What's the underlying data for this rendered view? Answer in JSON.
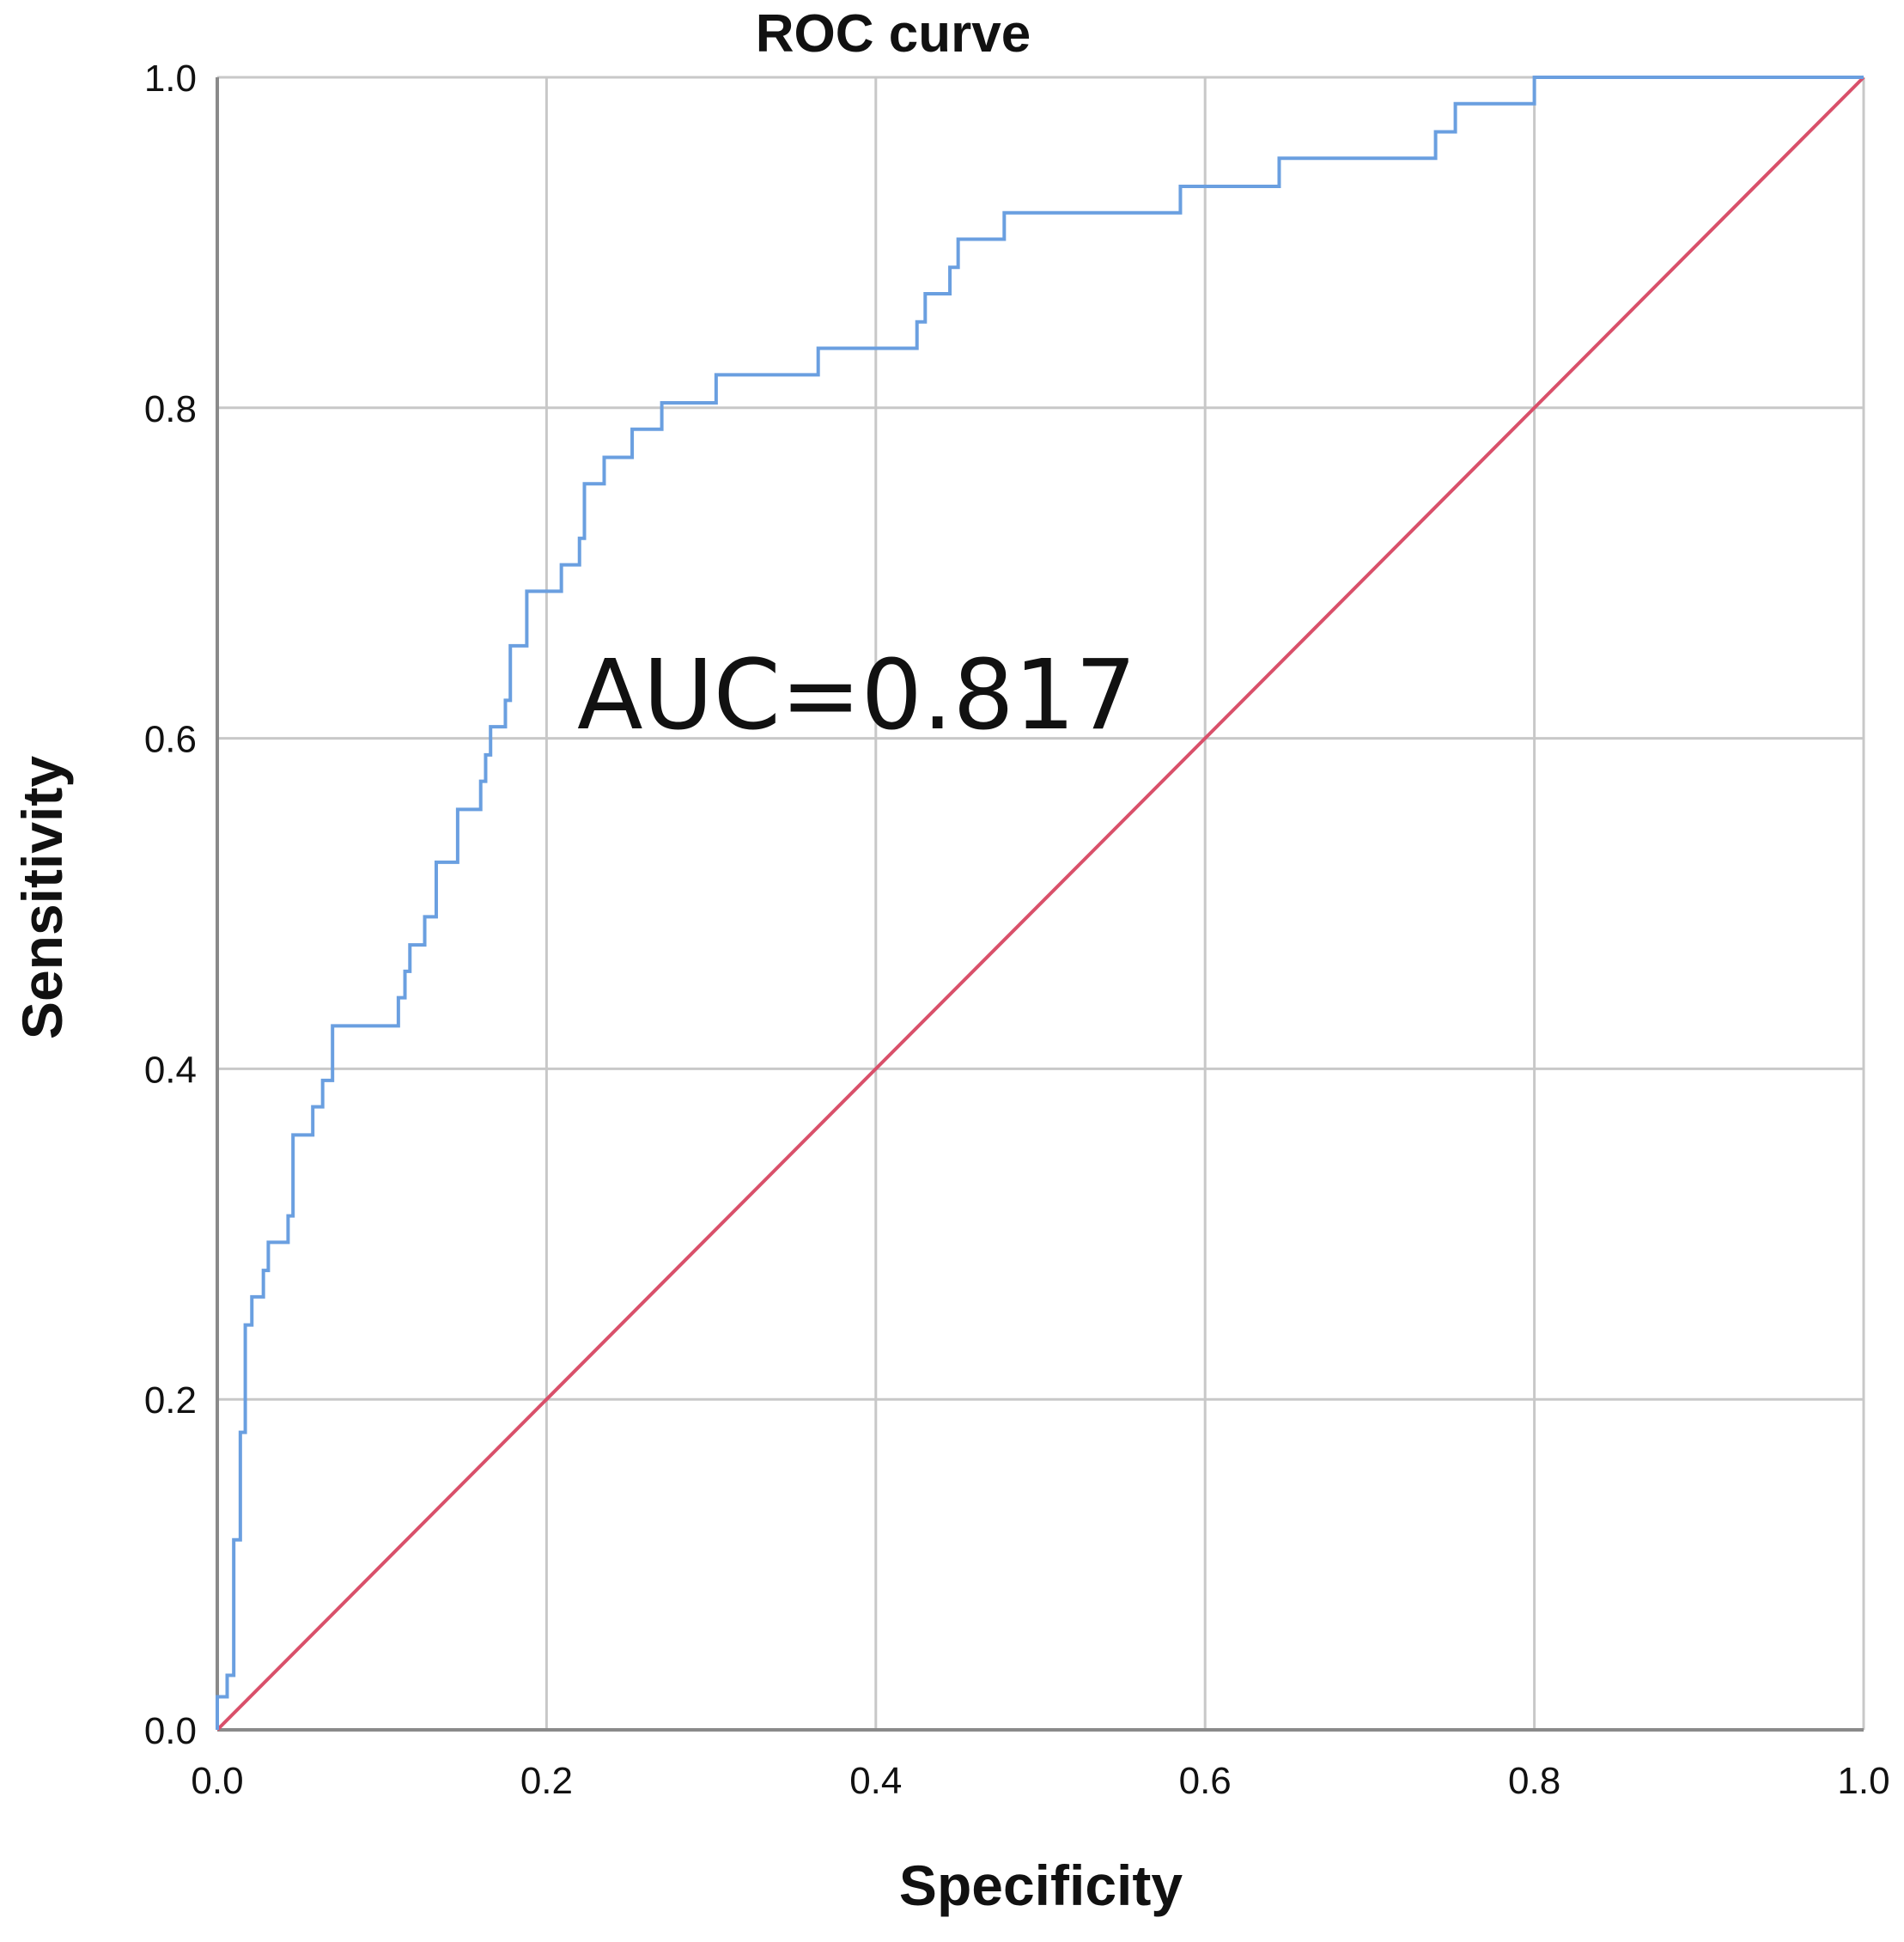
{
  "chart_data": {
    "type": "line",
    "title": "ROC curve",
    "xlabel": "Specificity",
    "ylabel": "Sensitivity",
    "xlim": [
      0,
      1
    ],
    "ylim": [
      0,
      1
    ],
    "xticks": [
      "0.0",
      "0.2",
      "0.4",
      "0.6",
      "0.8",
      "1.0"
    ],
    "yticks": [
      "0.0",
      "0.2",
      "0.4",
      "0.6",
      "0.8",
      "1.0"
    ],
    "grid": true,
    "annotation": "AUC=0.817",
    "series": [
      {
        "color": "#6a9fe0",
        "step": true,
        "points": [
          [
            0.0,
            0.0
          ],
          [
            0.0,
            0.02
          ],
          [
            0.006,
            0.02
          ],
          [
            0.006,
            0.033
          ],
          [
            0.01,
            0.033
          ],
          [
            0.01,
            0.115
          ],
          [
            0.014,
            0.115
          ],
          [
            0.014,
            0.18
          ],
          [
            0.017,
            0.18
          ],
          [
            0.017,
            0.245
          ],
          [
            0.021,
            0.245
          ],
          [
            0.021,
            0.262
          ],
          [
            0.028,
            0.262
          ],
          [
            0.028,
            0.278
          ],
          [
            0.031,
            0.278
          ],
          [
            0.031,
            0.295
          ],
          [
            0.043,
            0.295
          ],
          [
            0.043,
            0.311
          ],
          [
            0.046,
            0.311
          ],
          [
            0.046,
            0.36
          ],
          [
            0.058,
            0.36
          ],
          [
            0.058,
            0.377
          ],
          [
            0.064,
            0.377
          ],
          [
            0.064,
            0.393
          ],
          [
            0.07,
            0.393
          ],
          [
            0.07,
            0.426
          ],
          [
            0.11,
            0.426
          ],
          [
            0.11,
            0.443
          ],
          [
            0.114,
            0.443
          ],
          [
            0.114,
            0.459
          ],
          [
            0.117,
            0.459
          ],
          [
            0.117,
            0.475
          ],
          [
            0.126,
            0.475
          ],
          [
            0.126,
            0.492
          ],
          [
            0.133,
            0.492
          ],
          [
            0.133,
            0.525
          ],
          [
            0.146,
            0.525
          ],
          [
            0.146,
            0.557
          ],
          [
            0.16,
            0.557
          ],
          [
            0.16,
            0.574
          ],
          [
            0.163,
            0.574
          ],
          [
            0.163,
            0.59
          ],
          [
            0.166,
            0.59
          ],
          [
            0.166,
            0.607
          ],
          [
            0.175,
            0.607
          ],
          [
            0.175,
            0.623
          ],
          [
            0.178,
            0.623
          ],
          [
            0.178,
            0.656
          ],
          [
            0.188,
            0.656
          ],
          [
            0.188,
            0.689
          ],
          [
            0.209,
            0.689
          ],
          [
            0.209,
            0.705
          ],
          [
            0.22,
            0.705
          ],
          [
            0.22,
            0.721
          ],
          [
            0.223,
            0.721
          ],
          [
            0.223,
            0.754
          ],
          [
            0.235,
            0.754
          ],
          [
            0.235,
            0.77
          ],
          [
            0.252,
            0.77
          ],
          [
            0.252,
            0.787
          ],
          [
            0.27,
            0.787
          ],
          [
            0.27,
            0.803
          ],
          [
            0.303,
            0.803
          ],
          [
            0.303,
            0.82
          ],
          [
            0.365,
            0.82
          ],
          [
            0.365,
            0.836
          ],
          [
            0.425,
            0.836
          ],
          [
            0.425,
            0.852
          ],
          [
            0.43,
            0.852
          ],
          [
            0.43,
            0.869
          ],
          [
            0.445,
            0.869
          ],
          [
            0.445,
            0.885
          ],
          [
            0.45,
            0.885
          ],
          [
            0.45,
            0.902
          ],
          [
            0.478,
            0.902
          ],
          [
            0.478,
            0.918
          ],
          [
            0.585,
            0.918
          ],
          [
            0.585,
            0.934
          ],
          [
            0.645,
            0.934
          ],
          [
            0.645,
            0.951
          ],
          [
            0.74,
            0.951
          ],
          [
            0.74,
            0.967
          ],
          [
            0.752,
            0.967
          ],
          [
            0.752,
            0.984
          ],
          [
            0.8,
            0.984
          ],
          [
            0.8,
            1.0
          ],
          [
            1.0,
            1.0
          ]
        ]
      },
      {
        "color": "#d9506a",
        "step": false,
        "points": [
          [
            0,
            0
          ],
          [
            1,
            1
          ]
        ]
      }
    ]
  }
}
